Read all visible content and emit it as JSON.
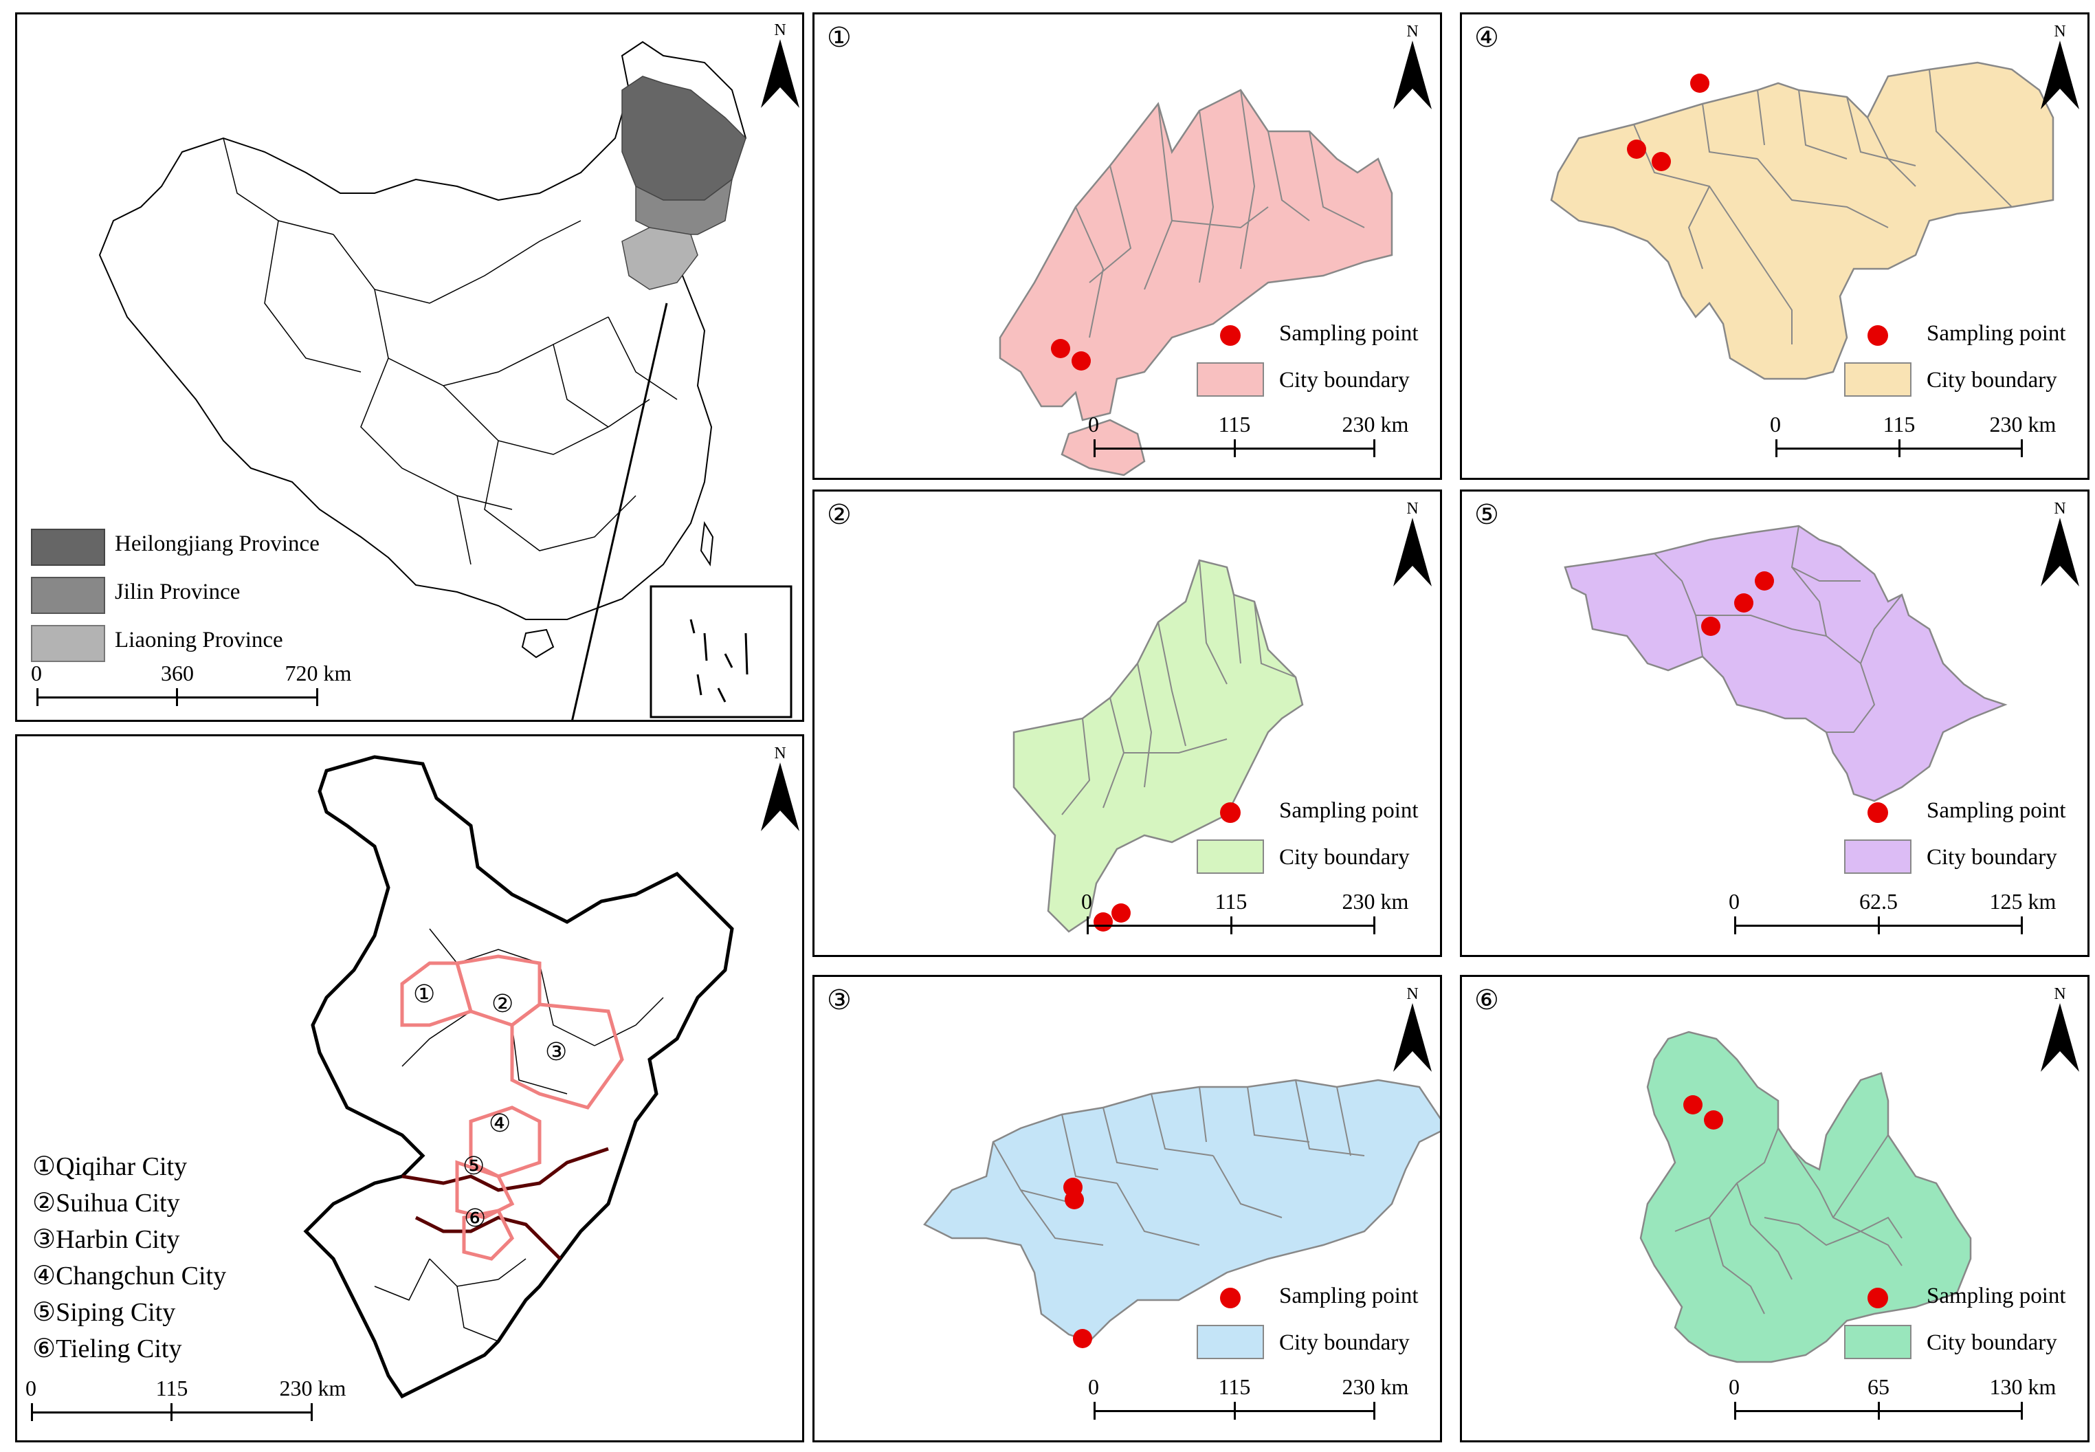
{
  "north_label": "N",
  "china_panel": {
    "legend": [
      {
        "label": "Heilongjiang Province",
        "color": "#666666"
      },
      {
        "label": "Jilin Province",
        "color": "#888888"
      },
      {
        "label": "Liaoning Province",
        "color": "#b3b3b3"
      }
    ],
    "scale": {
      "labels": [
        "0",
        "360",
        "720 km"
      ]
    }
  },
  "northeast_panel": {
    "cities": [
      "①Qiqihar City",
      "②Suihua City",
      "③Harbin City",
      "④Changchun City",
      "⑤Siping City",
      "⑥Tieling City"
    ],
    "map_markers": [
      "①",
      "②",
      "③",
      "④",
      "⑤",
      "⑥"
    ],
    "highlight_color": "#f08080",
    "scale": {
      "labels": [
        "0",
        "115",
        "230 km"
      ]
    }
  },
  "city_panels": [
    {
      "number": "①",
      "city": "Qiqihar City",
      "fill": "#f8c0c0",
      "sampling_label": "Sampling point",
      "boundary_label": "City boundary",
      "sampling_points": 2,
      "scale": [
        "0",
        "115",
        "230 km"
      ]
    },
    {
      "number": "②",
      "city": "Suihua City",
      "fill": "#d6f5c0",
      "sampling_label": "Sampling point",
      "boundary_label": "City boundary",
      "sampling_points": 2,
      "scale": [
        "0",
        "115",
        "230 km"
      ]
    },
    {
      "number": "③",
      "city": "Harbin City",
      "fill": "#c4e4f7",
      "sampling_label": "Sampling point",
      "boundary_label": "City boundary",
      "sampling_points": 3,
      "scale": [
        "0",
        "115",
        "230 km"
      ]
    },
    {
      "number": "④",
      "city": "Changchun City",
      "fill": "#f9e3b4",
      "sampling_label": "Sampling point",
      "boundary_label": "City boundary",
      "sampling_points": 3,
      "scale": [
        "0",
        "115",
        "230 km"
      ]
    },
    {
      "number": "⑤",
      "city": "Siping City",
      "fill": "#dcbcf5",
      "sampling_label": "Sampling point",
      "boundary_label": "City boundary",
      "sampling_points": 3,
      "scale": [
        "0",
        "62.5",
        "125 km"
      ]
    },
    {
      "number": "⑥",
      "city": "Tieling City",
      "fill": "#99e6bc",
      "sampling_label": "Sampling point",
      "boundary_label": "City boundary",
      "sampling_points": 2,
      "scale": [
        "0",
        "65",
        "130 km"
      ]
    }
  ],
  "colors": {
    "sampling_point": "#e60000",
    "boundary_stroke": "#888888"
  }
}
